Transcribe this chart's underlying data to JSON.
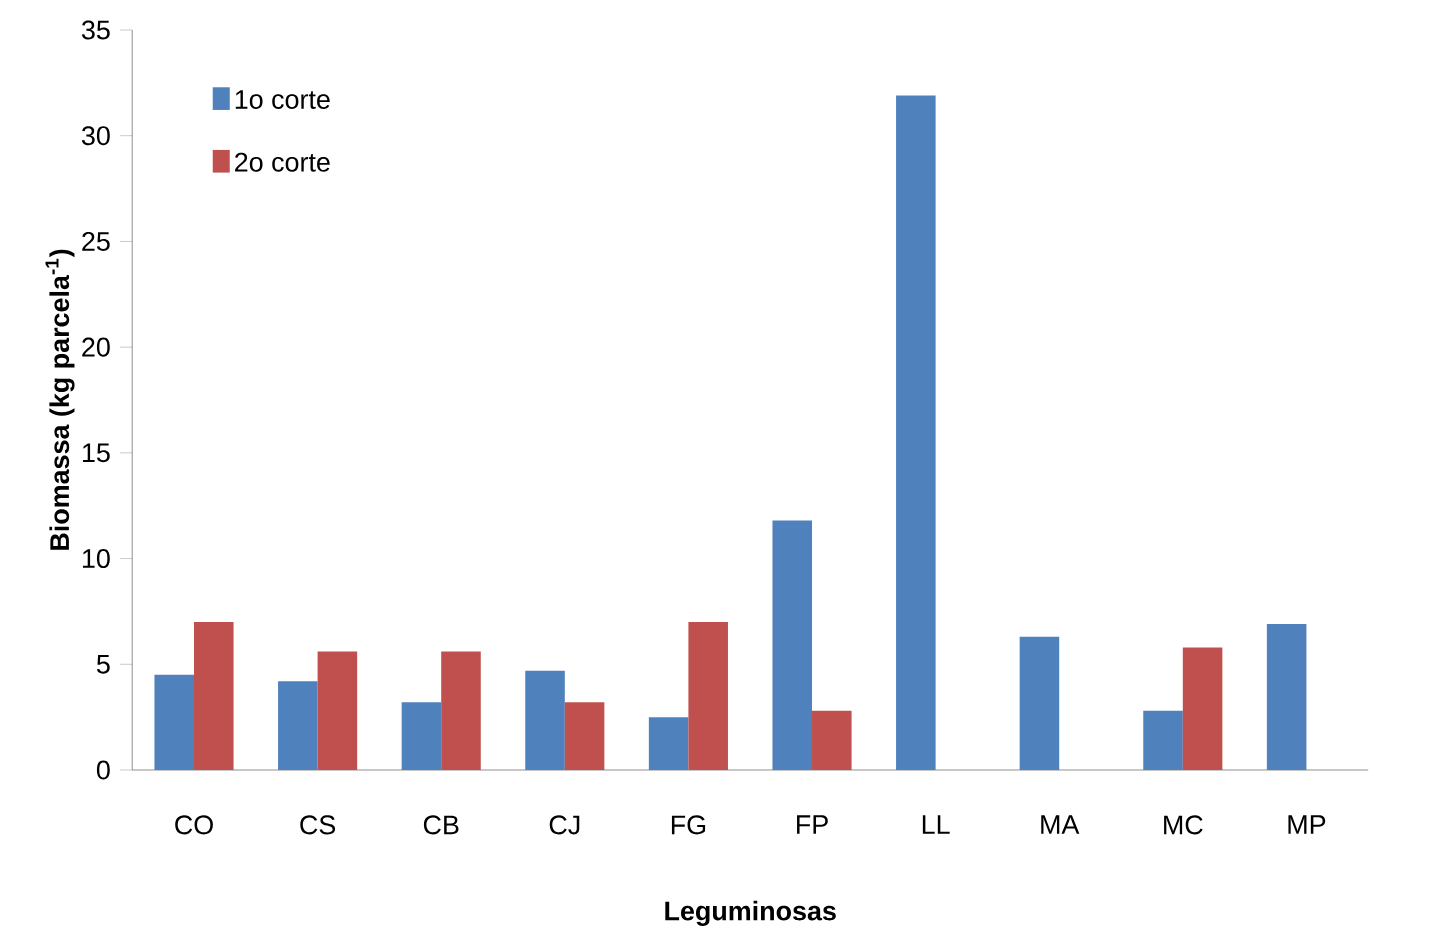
{
  "chart_data": {
    "type": "bar",
    "xlabel": "Leguminosas",
    "ylabel": "**Biomassa  (kg parcela$^{-1}$)**",
    "categories": [
      "CO",
      "CS",
      "CB",
      "CJ",
      "FG",
      "FP",
      "LL",
      "MA",
      "MC",
      "MP"
    ],
    "series": [
      {
        "name": "1o corte",
        "color": "#4f81bd",
        "values": [
          4.5,
          4.2,
          3.2,
          4.7,
          2.5,
          11.8,
          31.9,
          6.3,
          2.8,
          6.9
        ]
      },
      {
        "name": "2o corte",
        "color": "#c0504d",
        "values": [
          7.0,
          5.6,
          5.6,
          3.2,
          7.0,
          2.8,
          null,
          null,
          5.8,
          null
        ]
      }
    ],
    "ylim": [
      0,
      35
    ],
    "yticks": [
      0,
      5,
      10,
      15,
      20,
      25,
      30,
      35
    ],
    "grid": false,
    "legend": "top left"
  }
}
